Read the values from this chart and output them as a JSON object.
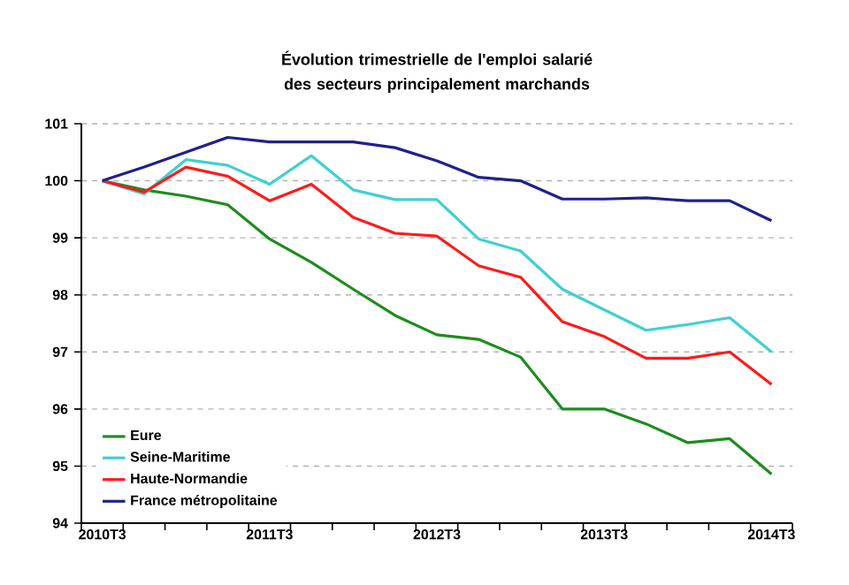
{
  "chart_data": {
    "type": "line",
    "title": "Évolution trimestrielle de l'emploi salarié des secteurs principalement marchands",
    "categories": [
      "2010T3",
      null,
      null,
      null,
      "2011T3",
      null,
      null,
      null,
      "2012T3",
      null,
      null,
      null,
      "2013T3",
      null,
      null,
      null,
      "2014T3"
    ],
    "series": [
      {
        "name": "Eure",
        "color": "#1e8c1e",
        "values": [
          100,
          99.84,
          99.73,
          99.58,
          98.98,
          98.57,
          98.1,
          97.64,
          97.3,
          97.22,
          96.91,
          96.0,
          96.0,
          95.74,
          95.41,
          95.48,
          94.86
        ]
      },
      {
        "name": "Seine-Maritime",
        "color": "#3fd0d0",
        "values": [
          100,
          99.77,
          100.37,
          100.27,
          99.94,
          100.44,
          99.84,
          99.67,
          99.67,
          98.98,
          98.77,
          98.1,
          97.74,
          97.38,
          97.48,
          97.6,
          97.0
        ]
      },
      {
        "name": "Haute-Normandie",
        "color": "#ff1a1a",
        "values": [
          100,
          99.8,
          100.24,
          100.08,
          99.65,
          99.94,
          99.36,
          99.08,
          99.03,
          98.51,
          98.31,
          97.53,
          97.27,
          96.89,
          96.89,
          97.0,
          96.43
        ]
      },
      {
        "name": "France métropolitaine",
        "color": "#20208c",
        "values": [
          100,
          100.24,
          100.5,
          100.76,
          100.68,
          100.68,
          100.68,
          100.58,
          100.35,
          100.06,
          100.0,
          99.68,
          99.68,
          99.7,
          99.65,
          99.65,
          99.3
        ]
      }
    ],
    "ylim": [
      94,
      101
    ],
    "yticks": [
      94,
      95,
      96,
      97,
      98,
      99,
      100,
      101
    ],
    "grid": "y",
    "legend": "bottom left",
    "marker": "none",
    "line_style": "solid"
  }
}
